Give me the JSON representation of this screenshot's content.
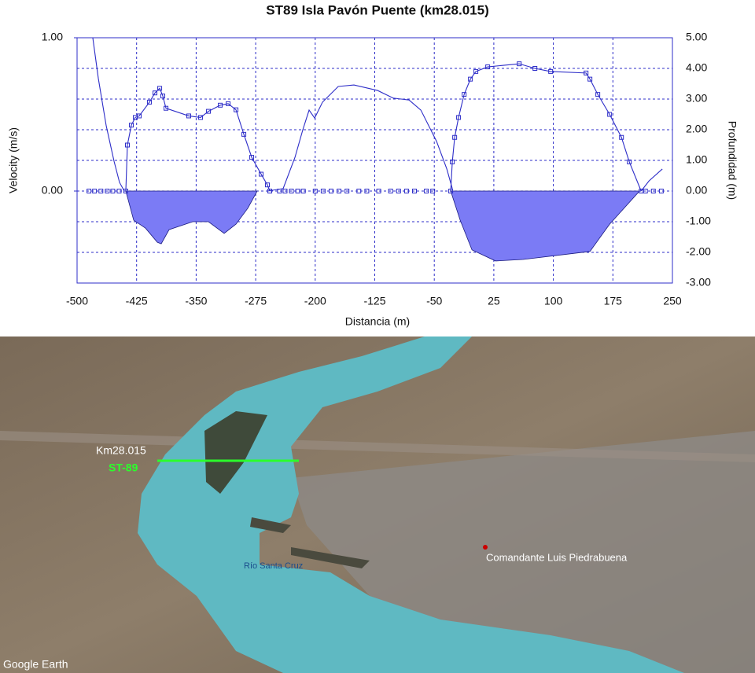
{
  "chart_data": {
    "type": "line",
    "title": "ST89 Isla Pavón Puente (km28.015)",
    "xlabel": "Distancia (m)",
    "ylabel": "Velocity (m/s)",
    "y2label": "Profundidad (m)",
    "xlim": [
      -500,
      250
    ],
    "xticks": [
      -500,
      -425,
      -350,
      -275,
      -200,
      -125,
      -50,
      25,
      100,
      175,
      250
    ],
    "ylim": [
      -0.6,
      1.0
    ],
    "yticks": [
      {
        "value": 0,
        "label": "0.00"
      },
      {
        "value": 1,
        "label": "1.00"
      }
    ],
    "y2lim": [
      -3,
      5
    ],
    "y2ticks": [
      {
        "value": 5,
        "label": "5.00"
      },
      {
        "value": 4,
        "label": "4.00"
      },
      {
        "value": 3,
        "label": "3.00"
      },
      {
        "value": 2,
        "label": "2.00"
      },
      {
        "value": 1,
        "label": "1.00"
      },
      {
        "value": 0,
        "label": "0.00"
      },
      {
        "value": -1,
        "label": "-1.00"
      },
      {
        "value": -2,
        "label": "-2.00"
      },
      {
        "value": -3,
        "label": "-3.00"
      }
    ],
    "grid": true,
    "series": [
      {
        "color": "#2d2dc8",
        "axis": "y",
        "marker": "square",
        "line": true,
        "x": [
          -438.6,
          -436.6,
          -431.6,
          -426.7,
          -421.7,
          -408.8,
          -401.9,
          -395.9,
          -392,
          -388,
          -359.3,
          -344.4,
          -334.5,
          -319.6,
          -309.7,
          -299.8,
          -289.9,
          -280,
          -268.1,
          -260.2,
          -257.2,
          null,
          -29.3,
          -27.3,
          -24.3,
          -19.4,
          -12.4,
          -4.5,
          2.4,
          17.3,
          57,
          76.8,
          96.6,
          141.2,
          146.1,
          156,
          170.9,
          185.8,
          195.7,
          210.6
        ],
        "values": [
          0,
          0.3,
          0.43,
          0.48,
          0.49,
          0.58,
          0.64,
          0.67,
          0.62,
          0.54,
          0.49,
          0.48,
          0.52,
          0.56,
          0.57,
          0.53,
          0.37,
          0.22,
          0.11,
          0.04,
          0,
          null,
          0,
          0.19,
          0.35,
          0.48,
          0.63,
          0.73,
          0.78,
          0.81,
          0.83,
          0.8,
          0.78,
          0.77,
          0.73,
          0.63,
          0.5,
          0.35,
          0.19,
          0
        ]
      },
      {
        "color": "#2d2dc8",
        "axis": "y",
        "marker": "square",
        "line": false,
        "x": [
          -485,
          -478,
          -470,
          -462,
          -455,
          -447,
          -245,
          -238,
          -230,
          -222,
          -215,
          -200,
          -190,
          -180,
          -170,
          -160,
          -145,
          -135,
          -120,
          -105,
          -95,
          -85,
          -75,
          -60,
          -52,
          216,
          226,
          236
        ],
        "values": [
          0,
          0,
          0,
          0,
          0,
          0,
          0,
          0,
          0,
          0,
          0,
          0,
          0,
          0,
          0,
          0,
          0,
          0,
          0,
          0,
          0,
          0,
          0,
          0,
          0,
          0,
          0,
          0
        ]
      },
      {
        "color": "#2d2dc8",
        "axis": "y2",
        "marker": "none",
        "line": true,
        "x": [
          -480.2,
          -473.2,
          -463.3,
          -453.4,
          -446.5,
          -440.5,
          null,
          -260.2,
          -240.4,
          -225.5,
          -215.6,
          -207.7,
          -200.7,
          -190.8,
          -171,
          -151.2,
          -121.4,
          -101.6,
          -81.8,
          -66.9,
          -47.1,
          -34.2,
          -27.3,
          null,
          210.6,
          220.5,
          237.3
        ],
        "values": [
          5,
          3.67,
          2.13,
          0.97,
          0.28,
          0,
          null,
          0,
          0.08,
          1.1,
          2,
          2.64,
          2.38,
          2.9,
          3.41,
          3.46,
          3.28,
          3.03,
          2.97,
          2.64,
          1.62,
          0.72,
          0.08,
          null,
          0,
          0.33,
          0.72
        ]
      },
      {
        "color": "#7b7bf5",
        "axis": "y2",
        "marker": "none",
        "line": true,
        "fill": true,
        "x": [
          -438.6,
          -428.7,
          -413.8,
          -398.9,
          -394,
          -384.1,
          -354.3,
          -334.5,
          -314.7,
          -299.8,
          -284.9,
          -273.1,
          null,
          -29.3,
          -17.4,
          -2.5,
          27.2,
          61.9,
          146.1,
          170.9,
          208.6
        ],
        "values": [
          0,
          -0.95,
          -1.21,
          -1.67,
          -1.72,
          -1.26,
          -1,
          -1,
          -1.38,
          -1.08,
          -0.56,
          0,
          null,
          0,
          -0.95,
          -1.92,
          -2.28,
          -2.23,
          -1.97,
          -1.08,
          0
        ]
      }
    ]
  },
  "map": {
    "bridge_label": "Km28.015",
    "station_label": "ST-89",
    "river_label": "Río Santa Cruz",
    "town_label": "Comandante Luis Piedrabuena",
    "credit": "Google Earth"
  }
}
